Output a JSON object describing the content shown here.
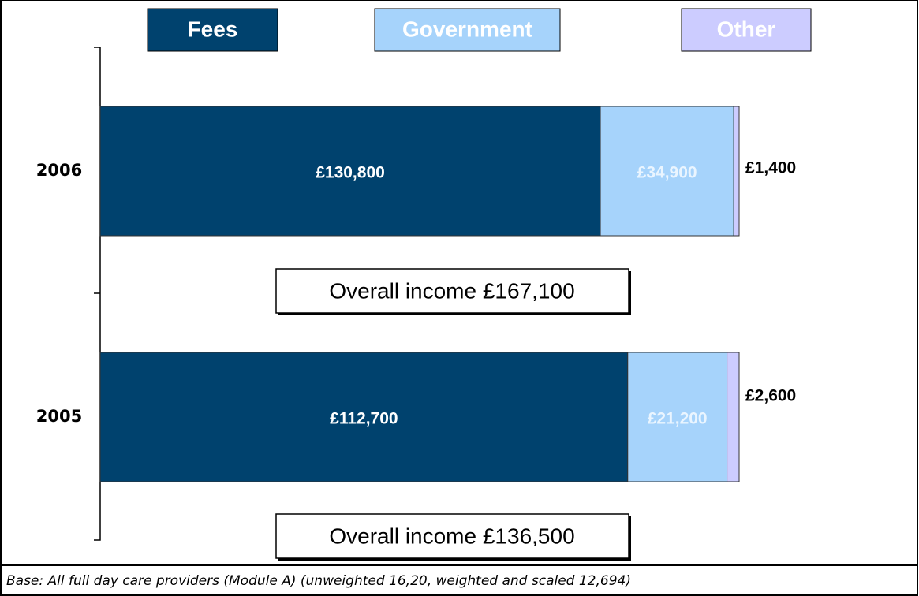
{
  "chart_data": {
    "type": "bar",
    "orientation": "horizontal",
    "stacking": "percent",
    "categories": [
      "2006",
      "2005"
    ],
    "series": [
      {
        "name": "Fees",
        "color": "#00426e",
        "label_color": "#ffffff",
        "values": [
          130800,
          112700
        ],
        "value_labels": [
          "£130,800",
          "£112,700"
        ]
      },
      {
        "name": "Government",
        "color": "#a6d3fb",
        "label_color": "#eaf5ff",
        "values": [
          34900,
          21200
        ],
        "value_labels": [
          "£34,900",
          "£21,200"
        ]
      },
      {
        "name": "Other",
        "color": "#ccccff",
        "label_color": "#000000",
        "values": [
          1400,
          2600
        ],
        "value_labels": [
          "£1,400",
          "£2,600"
        ]
      }
    ],
    "annotations": [
      "Overall income £167,100",
      "Overall income £136,500"
    ],
    "footnote": "Base: All full day care providers  (Module A) (unweighted 16,20, weighted and scaled 12,694)"
  }
}
